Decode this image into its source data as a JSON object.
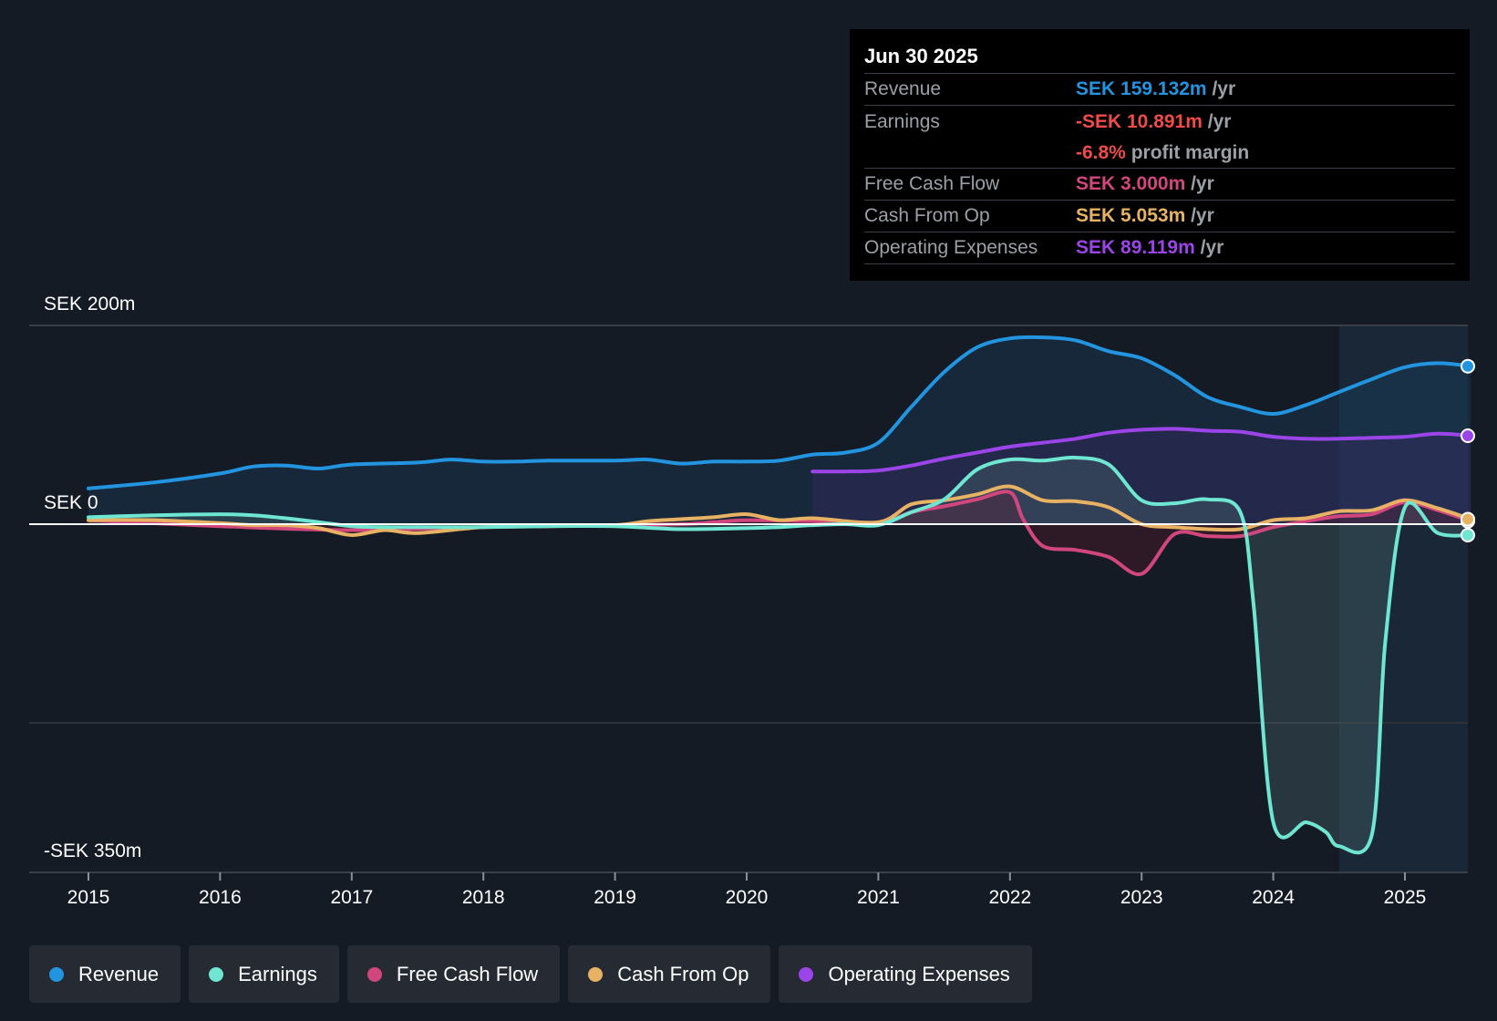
{
  "colors": {
    "revenue": "#2394df",
    "earnings": "#6ee6d2",
    "fcf": "#d2467e",
    "cfo": "#e8b264",
    "opex": "#9b45e8",
    "background": "#151b24"
  },
  "tooltip": {
    "date": "Jun 30 2025",
    "rows": {
      "revenue": {
        "label": "Revenue",
        "value": "SEK 159.132m",
        "unit": "/yr"
      },
      "earnings": {
        "label": "Earnings",
        "value": "-SEK 10.891m",
        "unit": "/yr"
      },
      "margin": {
        "value": "-6.8%",
        "unit": "profit margin"
      },
      "fcf": {
        "label": "Free Cash Flow",
        "value": "SEK 3.000m",
        "unit": "/yr"
      },
      "cfo": {
        "label": "Cash From Op",
        "value": "SEK 5.053m",
        "unit": "/yr"
      },
      "opex": {
        "label": "Operating Expenses",
        "value": "SEK 89.119m",
        "unit": "/yr"
      }
    }
  },
  "legend": {
    "revenue": "Revenue",
    "earnings": "Earnings",
    "fcf": "Free Cash Flow",
    "cfo": "Cash From Op",
    "opex": "Operating Expenses"
  },
  "chart_data": {
    "type": "area",
    "y_labels": {
      "top": "SEK 200m",
      "zero": "SEK 0",
      "bottom": "-SEK 350m"
    },
    "ylim": [
      -350,
      200
    ],
    "xlim": [
      2014.55,
      2025.5
    ],
    "x_ticks": [
      "2015",
      "2016",
      "2017",
      "2018",
      "2019",
      "2020",
      "2021",
      "2022",
      "2023",
      "2024",
      "2025"
    ],
    "tick_values": [
      2015,
      2016,
      2017,
      2018,
      2019,
      2020,
      2021,
      2022,
      2023,
      2024,
      2025
    ],
    "highlight_start": 2024.5,
    "grid": true,
    "series": [
      {
        "name": "Revenue",
        "key": "revenue",
        "fill": true,
        "x": [
          2015.0,
          2015.5,
          2016.0,
          2016.25,
          2016.5,
          2016.75,
          2017.0,
          2017.5,
          2017.75,
          2018.0,
          2018.25,
          2018.5,
          2019.0,
          2019.25,
          2019.5,
          2019.75,
          2020.0,
          2020.25,
          2020.5,
          2020.75,
          2021.0,
          2021.25,
          2021.5,
          2021.75,
          2022.0,
          2022.25,
          2022.5,
          2022.75,
          2023.0,
          2023.25,
          2023.5,
          2023.75,
          2024.0,
          2024.25,
          2024.5,
          2024.75,
          2025.0,
          2025.25,
          2025.5
        ],
        "y": [
          36,
          42,
          51,
          58,
          59,
          56,
          60,
          62,
          65,
          63,
          63,
          64,
          64,
          65,
          61,
          63,
          63,
          64,
          70,
          72,
          82,
          118,
          153,
          178,
          187,
          188,
          185,
          174,
          167,
          150,
          128,
          118,
          111,
          120,
          133,
          146,
          158,
          162,
          159
        ]
      },
      {
        "name": "Operating Expenses",
        "key": "opex",
        "fill": true,
        "x": [
          2020.5,
          2020.75,
          2021.0,
          2021.25,
          2021.5,
          2021.75,
          2022.0,
          2022.25,
          2022.5,
          2022.75,
          2023.0,
          2023.25,
          2023.5,
          2023.75,
          2024.0,
          2024.25,
          2024.5,
          2024.75,
          2025.0,
          2025.25,
          2025.5
        ],
        "y": [
          53,
          53,
          54,
          59,
          66,
          72,
          78,
          82,
          86,
          92,
          95,
          96,
          94,
          93,
          88,
          86,
          86,
          87,
          88,
          91,
          89
        ]
      },
      {
        "name": "Earnings",
        "key": "earnings",
        "fill": true,
        "x": [
          2015.0,
          2015.5,
          2016.0,
          2016.25,
          2016.5,
          2016.75,
          2017.0,
          2017.25,
          2017.5,
          2018.0,
          2018.5,
          2019.0,
          2019.5,
          2020.0,
          2020.25,
          2020.5,
          2020.75,
          2021.0,
          2021.25,
          2021.5,
          2021.75,
          2022.0,
          2022.25,
          2022.5,
          2022.75,
          2023.0,
          2023.25,
          2023.5,
          2023.75,
          2023.85,
          2024.0,
          2024.25,
          2024.4,
          2024.5,
          2024.75,
          2024.85,
          2025.0,
          2025.25,
          2025.5
        ],
        "y": [
          7,
          9,
          10,
          9,
          6,
          2,
          -2,
          -3,
          -3,
          -3,
          -2,
          -2,
          -5,
          -4,
          -3,
          -1,
          0,
          -1,
          12,
          25,
          55,
          65,
          64,
          67,
          60,
          24,
          21,
          25,
          12,
          -80,
          -300,
          -300,
          -310,
          -324,
          -312,
          -120,
          17,
          -9,
          -11
        ]
      },
      {
        "name": "Free Cash Flow",
        "key": "fcf",
        "fill": true,
        "x": [
          2015.0,
          2016.0,
          2017.0,
          2018.0,
          2019.0,
          2019.5,
          2019.75,
          2020.0,
          2020.5,
          2021.0,
          2021.25,
          2021.5,
          2021.75,
          2022.0,
          2022.1,
          2022.25,
          2022.5,
          2022.75,
          2023.0,
          2023.25,
          2023.5,
          2023.75,
          2024.0,
          2024.25,
          2024.5,
          2024.75,
          2025.0,
          2025.25,
          2025.5
        ],
        "y": [
          4,
          -2,
          -6,
          -3,
          -1,
          0,
          2,
          4,
          3,
          1,
          12,
          18,
          25,
          32,
          5,
          -22,
          -26,
          -33,
          -50,
          -10,
          -12,
          -12,
          -3,
          3,
          8,
          10,
          22,
          14,
          3
        ]
      },
      {
        "name": "Cash From Op",
        "key": "cfo",
        "fill": false,
        "x": [
          2015.0,
          2015.5,
          2016.0,
          2016.25,
          2016.5,
          2016.75,
          2017.0,
          2017.25,
          2017.5,
          2018.0,
          2018.5,
          2019.0,
          2019.25,
          2019.5,
          2019.75,
          2020.0,
          2020.25,
          2020.5,
          2021.0,
          2021.25,
          2021.5,
          2021.75,
          2022.0,
          2022.25,
          2022.5,
          2022.75,
          2023.0,
          2023.25,
          2023.5,
          2023.75,
          2024.0,
          2024.25,
          2024.5,
          2024.75,
          2025.0,
          2025.25,
          2025.5
        ],
        "y": [
          4,
          4,
          1,
          -1,
          -1,
          -4,
          -11,
          -6,
          -9,
          -3,
          -2,
          -1,
          3,
          5,
          7,
          10,
          4,
          6,
          2,
          20,
          24,
          30,
          38,
          24,
          23,
          17,
          0,
          -3,
          -5,
          -5,
          4,
          6,
          13,
          14,
          24,
          16,
          5
        ]
      }
    ]
  }
}
